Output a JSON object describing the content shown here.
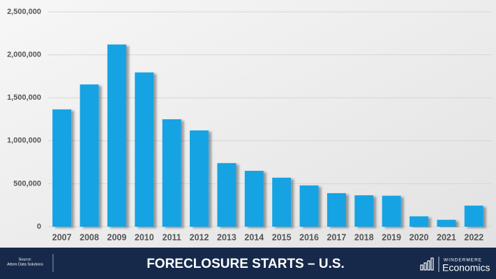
{
  "chart_data": {
    "type": "bar",
    "title": "FORECLOSURE STARTS – U.S.",
    "source": [
      "Source:",
      "Attom Data Solutions"
    ],
    "categories": [
      "2007",
      "2008",
      "2009",
      "2010",
      "2011",
      "2012",
      "2013",
      "2014",
      "2015",
      "2016",
      "2017",
      "2018",
      "2019",
      "2020",
      "2021",
      "2022"
    ],
    "values": [
      1365000,
      1655000,
      2120000,
      1795000,
      1250000,
      1120000,
      740000,
      650000,
      570000,
      480000,
      390000,
      365000,
      360000,
      120000,
      80000,
      245000
    ],
    "color": "#12a3e3",
    "ylim": [
      0,
      2500000
    ],
    "yticks": [
      0,
      {
        "value": 500000,
        "label": "500,000"
      },
      {
        "value": 1000000,
        "label": "1,000,000"
      },
      {
        "value": 1500000,
        "label": "1,500,000"
      },
      {
        "value": 2000000,
        "label": "2,000,000"
      },
      {
        "value": 2500000,
        "label": "2,500,000"
      }
    ],
    "grid": true
  },
  "footer": {
    "brand_top": "WINDERMERE",
    "brand": "Economics"
  }
}
